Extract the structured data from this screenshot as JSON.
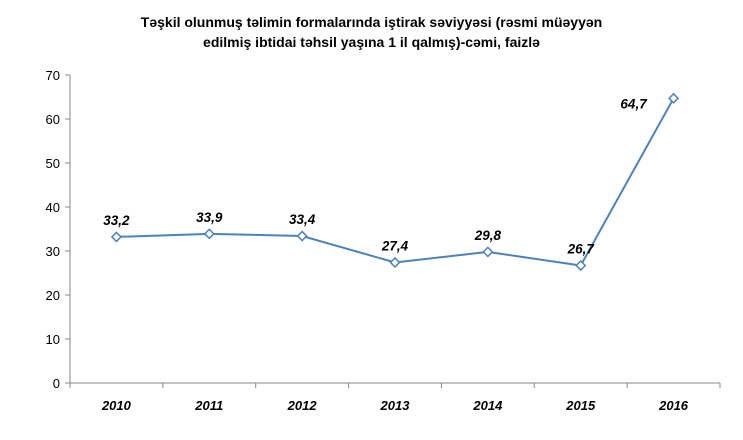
{
  "chart_data": {
    "type": "line",
    "title_lines": [
      "Təşkil olunmuş  təlimin formalarında  iştirak səviyyəsi (rəsmi müəyyən",
      "edilmiş ibtidai təhsil yaşına 1 il qalmış)-cəmi, faizlə"
    ],
    "categories": [
      "2010",
      "2011",
      "2012",
      "2013",
      "2014",
      "2015",
      "2016"
    ],
    "series": [
      {
        "values": [
          33.2,
          33.9,
          33.4,
          27.4,
          29.8,
          26.7,
          64.7
        ],
        "labels": [
          "33,2",
          "33,9",
          "33,4",
          "27,4",
          "29,8",
          "26,7",
          "64,7"
        ]
      }
    ],
    "y_ticks": [
      "0",
      "10",
      "20",
      "30",
      "40",
      "50",
      "60",
      "70"
    ],
    "ylim": [
      0,
      70
    ],
    "grid": false,
    "legend": "none",
    "colors": {
      "line": "#4F81BD",
      "marker_fill": "#ffffff",
      "axis": "#888888"
    }
  }
}
